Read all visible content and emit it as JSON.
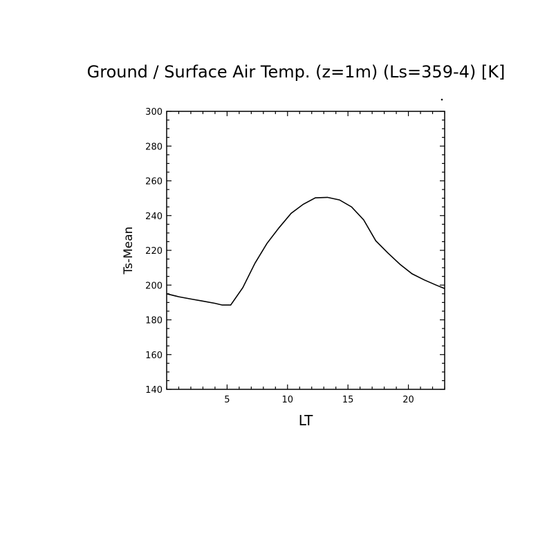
{
  "chart_data": {
    "type": "line",
    "title": "Ground / Surface Air Temp. (z=1m) (Ls=359-4) [K]",
    "xlabel": "LT",
    "ylabel": "Ts-Mean",
    "xlim": [
      0.0,
      23.0
    ],
    "ylim": [
      140,
      300
    ],
    "x_major_ticks": [
      5,
      10,
      15,
      20
    ],
    "x_tick_labels": [
      "5",
      "10",
      "15",
      "20"
    ],
    "y_major_ticks": [
      140,
      160,
      180,
      200,
      220,
      240,
      260,
      280,
      300
    ],
    "y_tick_labels": [
      "140",
      "160",
      "180",
      "200",
      "220",
      "240",
      "260",
      "280",
      "300"
    ],
    "grid": false,
    "series": [
      {
        "x": [
          0.0,
          1.0,
          2.0,
          3.0,
          4.0,
          4.6,
          5.3,
          6.3,
          7.3,
          8.3,
          9.3,
          10.3,
          11.3,
          12.3,
          13.3,
          14.3,
          15.3,
          16.3,
          17.3,
          18.3,
          19.3,
          20.3,
          21.3,
          22.3,
          23.0
        ],
        "values": [
          195,
          193.3,
          192,
          190.8,
          189.5,
          188.5,
          188.5,
          198.5,
          212.5,
          224,
          233,
          241.3,
          246.5,
          250.2,
          250.5,
          249,
          245,
          237.5,
          225.5,
          218.5,
          212,
          206.5,
          203,
          200,
          198
        ]
      }
    ]
  }
}
